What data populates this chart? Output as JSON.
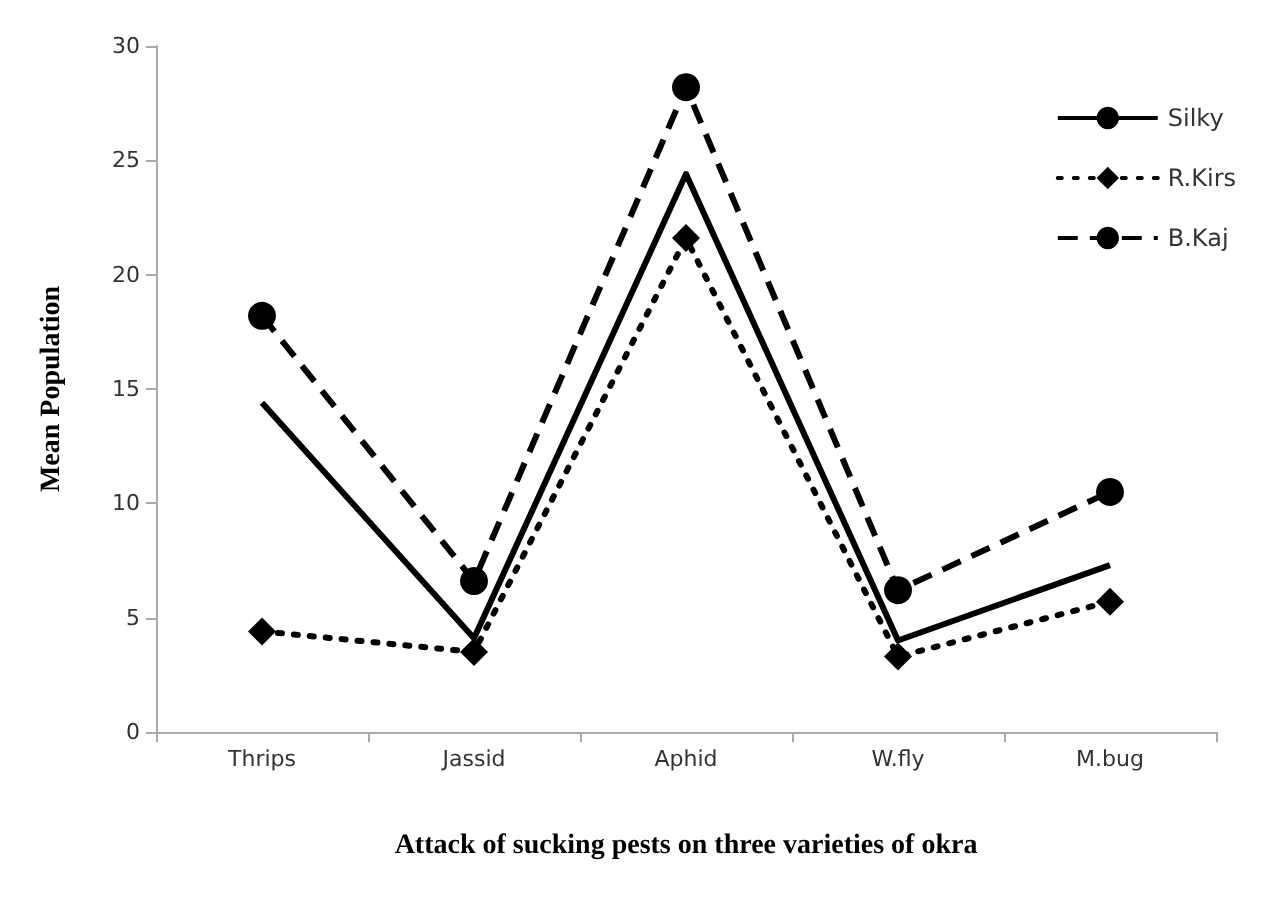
{
  "chart_data": {
    "type": "line",
    "xlabel": "Attack of sucking pests on three varieties of okra",
    "ylabel": "Mean Population",
    "categories": [
      "Thrips",
      "Jassid",
      "Aphid",
      "W.fly",
      "M.bug"
    ],
    "ylim": [
      0,
      30
    ],
    "yticks": [
      0,
      5,
      10,
      15,
      20,
      25,
      30
    ],
    "grid": false,
    "legend": "top right",
    "series": [
      {
        "name": "Silky",
        "color": "#000000",
        "values": [
          14.4,
          4.1,
          24.4,
          4.0,
          7.3
        ],
        "line_style": "solid",
        "marker": "none"
      },
      {
        "name": "R.Kirs",
        "color": "#000000",
        "values": [
          4.4,
          3.5,
          21.6,
          3.3,
          5.7
        ],
        "line_style": "dotted",
        "marker": "diamond"
      },
      {
        "name": "B.Kaj",
        "color": "#000000",
        "values": [
          18.2,
          6.6,
          28.2,
          6.2,
          10.5
        ],
        "line_style": "dashed",
        "marker": "circle"
      }
    ]
  }
}
